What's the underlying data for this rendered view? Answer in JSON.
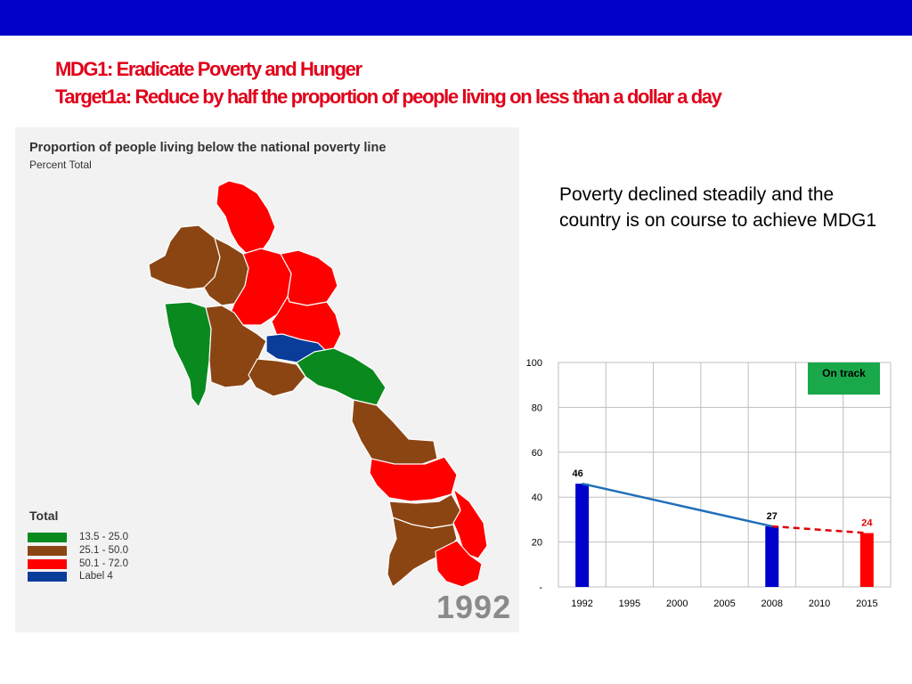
{
  "header": {
    "title_line1": "MDG1: Eradicate Poverty and Hunger",
    "title_line2": "Target1a: Reduce by half the proportion of people living on less than a dollar a day"
  },
  "map": {
    "title": "Proportion of people living below the national poverty line",
    "subtitle": "Percent Total",
    "year": "1992",
    "legend_title": "Total",
    "legend": [
      {
        "label": "13.5 - 25.0",
        "color": "#0a8a1e"
      },
      {
        "label": "25.1 - 50.0",
        "color": "#8b4513"
      },
      {
        "label": "50.1 - 72.0",
        "color": "#ff0000"
      },
      {
        "label": "Label 4",
        "color": "#0a3c9a"
      }
    ]
  },
  "note": "Poverty declined steadily and the country is on course to achieve MDG1",
  "chart_data": {
    "type": "bar",
    "categories": [
      "1992",
      "1995",
      "2000",
      "2005",
      "2008",
      "2010",
      "2015"
    ],
    "series": [
      {
        "values": [
          46,
          null,
          null,
          null,
          27,
          null,
          24
        ],
        "colors": [
          "#0000cc",
          null,
          null,
          null,
          "#0000cc",
          null,
          "#ff0000"
        ]
      }
    ],
    "data_labels": {
      "1992": "46",
      "2008": "27",
      "2015": "24"
    },
    "trend_lines": [
      {
        "from": "1992",
        "to": "2008",
        "y": [
          46,
          27
        ],
        "style": "solid",
        "color": "#1f6fb8"
      },
      {
        "from": "2008",
        "to": "2015",
        "y": [
          27,
          24
        ],
        "style": "dashed",
        "color": "#e00000"
      }
    ],
    "ylim": [
      0,
      100
    ],
    "yticks": [
      "-",
      "20",
      "40",
      "60",
      "80",
      "100"
    ],
    "grid": true,
    "badge": {
      "label": "On track",
      "color": "#19a84a"
    }
  }
}
